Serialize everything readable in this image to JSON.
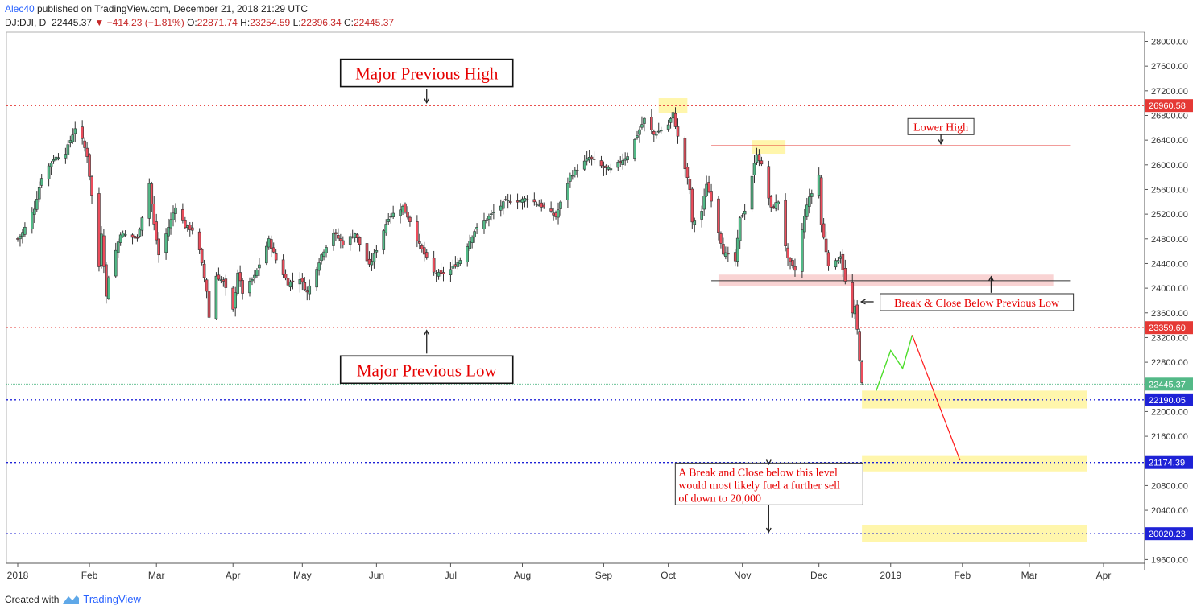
{
  "header": {
    "author": "Alec40",
    "published": "published on TradingView.com, December 21, 2018 21:29 UTC",
    "symbol": "DJ:DJI, D",
    "last": "22445.37",
    "change": "−414.23 (−1.81%)",
    "o_label": "O:",
    "o": "22871.74",
    "h_label": "H:",
    "h": "23254.59",
    "l_label": "L:",
    "l": "22396.34",
    "c_label": "C:",
    "c": "22445.37"
  },
  "footer": {
    "created_with": "Created with",
    "brand": "TradingView"
  },
  "colors": {
    "up": "#53b987",
    "down": "#eb4d5c",
    "red_line": "#e53935",
    "blue_line": "#1e22d6",
    "highlight": "#fff59d"
  },
  "chart_data": {
    "type": "candlestick",
    "ylim": [
      19540,
      28150
    ],
    "y_ticks": [
      19600,
      20000,
      20400,
      20800,
      21200,
      21600,
      22000,
      22400,
      22800,
      23200,
      23600,
      24000,
      24400,
      24800,
      25200,
      25600,
      26000,
      26400,
      26800,
      27200,
      27600,
      28000
    ],
    "y_tick_labels": [
      "19600.00",
      "20000.00",
      "20400.00",
      "20800.00",
      "21200.00",
      "21600.00",
      "22000.00",
      "22400.00",
      "22800.00",
      "23200.00",
      "23600.00",
      "24000.00",
      "24400.00",
      "24800.00",
      "25200.00",
      "25600.00",
      "26000.00",
      "26400.00",
      "26800.00",
      "27200.00",
      "27600.00",
      "28000.00"
    ],
    "x_labels": [
      {
        "label": "2018",
        "date": "2018-01-02"
      },
      {
        "label": "Feb",
        "date": "2018-02-01"
      },
      {
        "label": "Mar",
        "date": "2018-03-01"
      },
      {
        "label": "Apr",
        "date": "2018-04-02"
      },
      {
        "label": "May",
        "date": "2018-05-01"
      },
      {
        "label": "Jun",
        "date": "2018-06-01"
      },
      {
        "label": "Jul",
        "date": "2018-07-02"
      },
      {
        "label": "Aug",
        "date": "2018-08-01"
      },
      {
        "label": "Sep",
        "date": "2018-09-04"
      },
      {
        "label": "Oct",
        "date": "2018-10-01"
      },
      {
        "label": "Nov",
        "date": "2018-11-01"
      },
      {
        "label": "Dec",
        "date": "2018-12-03"
      },
      {
        "label": "2019",
        "date": "2019-01-02"
      },
      {
        "label": "Feb",
        "date": "2019-02-01"
      },
      {
        "label": "Mar",
        "date": "2019-03-01"
      },
      {
        "label": "Apr",
        "date": "2019-04-01"
      }
    ],
    "close_path": [
      [
        "2018-01-02",
        24800
      ],
      [
        "2018-01-04",
        24900
      ],
      [
        "2018-01-09",
        25300
      ],
      [
        "2018-01-12",
        25800
      ],
      [
        "2018-01-17",
        26100
      ],
      [
        "2018-01-22",
        26200
      ],
      [
        "2018-01-26",
        26600
      ],
      [
        "2018-01-29",
        26400
      ],
      [
        "2018-01-31",
        26150
      ],
      [
        "2018-02-02",
        25500
      ],
      [
        "2018-02-05",
        24350
      ],
      [
        "2018-02-06",
        24900
      ],
      [
        "2018-02-08",
        23860
      ],
      [
        "2018-02-09",
        24190
      ],
      [
        "2018-02-14",
        24890
      ],
      [
        "2018-02-21",
        24800
      ],
      [
        "2018-02-26",
        25700
      ],
      [
        "2018-02-28",
        25030
      ],
      [
        "2018-03-02",
        24540
      ],
      [
        "2018-03-09",
        25330
      ],
      [
        "2018-03-13",
        25000
      ],
      [
        "2018-03-16",
        24950
      ],
      [
        "2018-03-19",
        24600
      ],
      [
        "2018-03-22",
        23960
      ],
      [
        "2018-03-23",
        23530
      ],
      [
        "2018-03-26",
        24200
      ],
      [
        "2018-03-29",
        24100
      ],
      [
        "2018-04-02",
        23640
      ],
      [
        "2018-04-04",
        24260
      ],
      [
        "2018-04-06",
        23930
      ],
      [
        "2018-04-11",
        24190
      ],
      [
        "2018-04-17",
        24780
      ],
      [
        "2018-04-20",
        24460
      ],
      [
        "2018-04-25",
        24080
      ],
      [
        "2018-04-30",
        24160
      ],
      [
        "2018-05-03",
        23930
      ],
      [
        "2018-05-09",
        24540
      ],
      [
        "2018-05-14",
        24900
      ],
      [
        "2018-05-18",
        24720
      ],
      [
        "2018-05-23",
        24890
      ],
      [
        "2018-05-29",
        24360
      ],
      [
        "2018-06-01",
        24630
      ],
      [
        "2018-06-06",
        25150
      ],
      [
        "2018-06-12",
        25320
      ],
      [
        "2018-06-15",
        25090
      ],
      [
        "2018-06-19",
        24700
      ],
      [
        "2018-06-25",
        24250
      ],
      [
        "2018-06-28",
        24220
      ],
      [
        "2018-07-02",
        24300
      ],
      [
        "2018-07-06",
        24460
      ],
      [
        "2018-07-12",
        24930
      ],
      [
        "2018-07-17",
        25120
      ],
      [
        "2018-07-25",
        25410
      ],
      [
        "2018-07-31",
        25420
      ],
      [
        "2018-08-03",
        25460
      ],
      [
        "2018-08-10",
        25310
      ],
      [
        "2018-08-15",
        25160
      ],
      [
        "2018-08-21",
        25820
      ],
      [
        "2018-08-29",
        26120
      ],
      [
        "2018-09-04",
        25950
      ],
      [
        "2018-09-07",
        25920
      ],
      [
        "2018-09-14",
        26150
      ],
      [
        "2018-09-21",
        26740
      ],
      [
        "2018-09-25",
        26490
      ],
      [
        "2018-10-01",
        26650
      ],
      [
        "2018-10-03",
        26830
      ],
      [
        "2018-10-05",
        26450
      ],
      [
        "2018-10-10",
        25600
      ],
      [
        "2018-10-11",
        25050
      ],
      [
        "2018-10-15",
        25250
      ],
      [
        "2018-10-17",
        25700
      ],
      [
        "2018-10-19",
        25440
      ],
      [
        "2018-10-24",
        24580
      ],
      [
        "2018-10-29",
        24440
      ],
      [
        "2018-10-31",
        25120
      ],
      [
        "2018-11-02",
        25270
      ],
      [
        "2018-11-07",
        26190
      ],
      [
        "2018-11-09",
        25990
      ],
      [
        "2018-11-13",
        25290
      ],
      [
        "2018-11-16",
        25410
      ],
      [
        "2018-11-20",
        24460
      ],
      [
        "2018-11-23",
        24290
      ],
      [
        "2018-11-28",
        25370
      ],
      [
        "2018-11-30",
        25540
      ],
      [
        "2018-12-03",
        25830
      ],
      [
        "2018-12-04",
        25030
      ],
      [
        "2018-12-07",
        24390
      ],
      [
        "2018-12-10",
        24420
      ],
      [
        "2018-12-12",
        24530
      ],
      [
        "2018-12-14",
        24100
      ],
      [
        "2018-12-17",
        23590
      ],
      [
        "2018-12-18",
        23680
      ],
      [
        "2018-12-19",
        23320
      ],
      [
        "2018-12-20",
        22860
      ],
      [
        "2018-12-21",
        22445
      ]
    ],
    "horizontal_levels": [
      {
        "value": 26960.58,
        "label": "26960.58",
        "style": "red-dotted"
      },
      {
        "value": 23359.6,
        "label": "23359.60",
        "style": "red-dotted"
      },
      {
        "value": 22445.37,
        "label": "22445.37",
        "style": "green-dotted"
      },
      {
        "value": 22190.05,
        "label": "22190.05",
        "style": "blue-dotted"
      },
      {
        "value": 21174.39,
        "label": "21174.39",
        "style": "blue-dotted"
      },
      {
        "value": 20020.23,
        "label": "20020.23",
        "style": "blue-dotted"
      }
    ],
    "trend_lines": [
      {
        "name": "lower-high-line",
        "from": [
          "2018-10-19",
          26310
        ],
        "to": [
          "2019-03-18",
          26310
        ]
      },
      {
        "name": "previous-low-line",
        "from": [
          "2018-10-19",
          24120
        ],
        "to": [
          "2019-03-18",
          24120
        ]
      }
    ],
    "zones": [
      {
        "name": "top-highlight",
        "from": "2018-09-27",
        "to": "2018-10-09",
        "y": [
          26840,
          27080
        ]
      },
      {
        "name": "lower-high-highlight",
        "from": "2018-11-05",
        "to": "2018-11-19",
        "y": [
          26180,
          26400
        ]
      },
      {
        "name": "previous-low-zone",
        "from": "2018-10-22",
        "to": "2019-03-11",
        "y": [
          24030,
          24220
        ]
      },
      {
        "name": "zone-22190",
        "from": "2018-12-21",
        "to": "2019-03-25",
        "y": [
          22050,
          22340
        ]
      },
      {
        "name": "zone-21174",
        "from": "2018-12-21",
        "to": "2019-03-25",
        "y": [
          21030,
          21280
        ]
      },
      {
        "name": "zone-20020",
        "from": "2018-12-21",
        "to": "2019-03-25",
        "y": [
          19890,
          20160
        ]
      }
    ],
    "projection": {
      "up": [
        [
          "2018-12-27",
          22340
        ],
        [
          "2019-01-02",
          22990
        ],
        [
          "2019-01-07",
          22700
        ],
        [
          "2019-01-11",
          23240
        ]
      ],
      "down": [
        [
          "2019-01-11",
          23240
        ],
        [
          "2019-01-31",
          21210
        ]
      ]
    },
    "annotations": [
      {
        "text": "Major Previous High",
        "anchor": [
          "2018-06-22",
          27490
        ],
        "arrow_to": [
          "2018-06-22",
          26980
        ]
      },
      {
        "text": "Major Previous Low",
        "anchor": [
          "2018-06-22",
          22680
        ],
        "arrow_to": [
          "2018-06-22",
          23340
        ]
      },
      {
        "text": "Lower High",
        "anchor": [
          "2019-01-23",
          26620
        ],
        "arrow_to": [
          "2019-01-23",
          26340
        ]
      },
      {
        "text": "Break & Close Below Previous Low",
        "anchor": [
          "2019-02-07",
          23780
        ],
        "arrow_to": [
          "2018-12-18",
          23780
        ]
      },
      {
        "text_lines": [
          "A Break and Close below this level",
          "would most likely fuel a further sell",
          "of down to 20,000"
        ],
        "anchor": [
          "2018-11-12",
          20840
        ],
        "arrow_up_to": [
          "2018-11-12",
          21174
        ],
        "arrow_down_to": [
          "2018-11-12",
          20020
        ]
      }
    ],
    "arrow_markers": [
      {
        "name": "previous-low-zone-up-arrow",
        "at": [
          "2019-02-13",
          24030
        ],
        "to": [
          "2019-02-13",
          24160
        ]
      }
    ]
  }
}
